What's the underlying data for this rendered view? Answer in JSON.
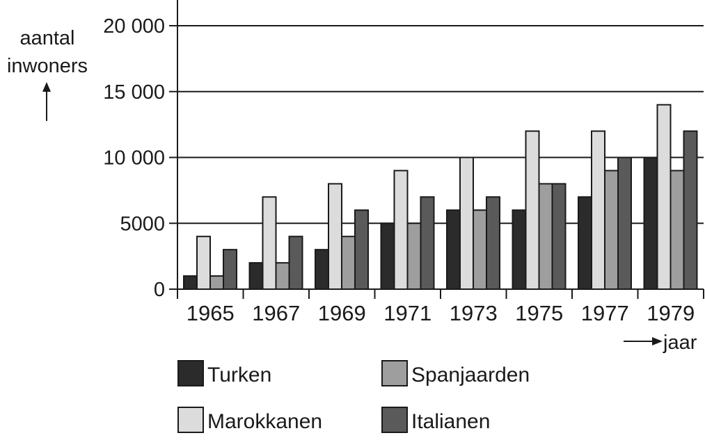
{
  "chart_data": {
    "type": "bar",
    "ylabel_lines": [
      "aantal",
      "inwoners"
    ],
    "xlabel": "jaar",
    "categories": [
      "1965",
      "1967",
      "1969",
      "1971",
      "1973",
      "1975",
      "1977",
      "1979"
    ],
    "y_ticks": [
      "0",
      "5000",
      "10 000",
      "15 000",
      "20 000"
    ],
    "y_tick_values": [
      0,
      5000,
      10000,
      15000,
      20000
    ],
    "ylim": [
      0,
      20000
    ],
    "grid": "horizontal",
    "legend_position": "bottom",
    "series": [
      {
        "name": "Turken",
        "color": "#2b2b2b",
        "values": [
          1000,
          2000,
          3000,
          5000,
          6000,
          6000,
          7000,
          10000
        ]
      },
      {
        "name": "Marokkanen",
        "color": "#dcdcdc",
        "values": [
          4000,
          7000,
          8000,
          9000,
          10000,
          12000,
          12000,
          14000
        ]
      },
      {
        "name": "Spanjaarden",
        "color": "#9e9e9e",
        "values": [
          1000,
          2000,
          4000,
          5000,
          6000,
          8000,
          9000,
          9000
        ]
      },
      {
        "name": "Italianen",
        "color": "#5a5a5a",
        "values": [
          3000,
          4000,
          6000,
          7000,
          7000,
          8000,
          10000,
          12000
        ]
      }
    ],
    "legend_order": [
      "Turken",
      "Spanjaarden",
      "Marokkanen",
      "Italianen"
    ]
  }
}
